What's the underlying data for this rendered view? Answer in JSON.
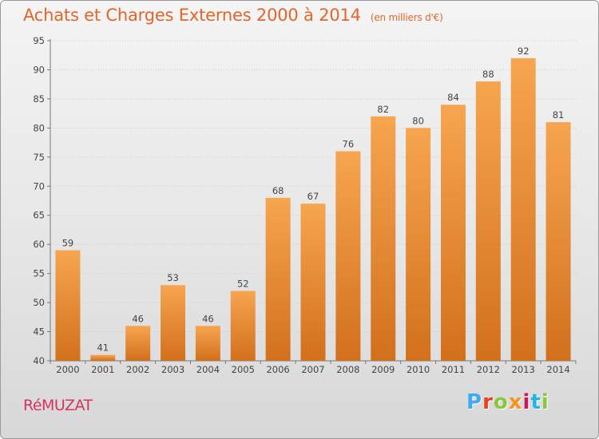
{
  "header": {
    "title": "Achats et Charges Externes 2000 à 2014",
    "unit": "(en milliers d'€)"
  },
  "footer": {
    "place": "RéMUZAT",
    "logo": "Proxiti"
  },
  "colors": {
    "bar_top": "#f7a550",
    "bar_bottom": "#d2701c",
    "title": "#e0662b",
    "place": "#d8355d",
    "logo_letters": [
      "#3fa9f5",
      "#e8411c",
      "#8cc63f",
      "#f7931e",
      "#d4145a",
      "#22b5e6",
      "#8cc63f"
    ]
  },
  "chart_data": {
    "type": "bar",
    "title": "Achats et Charges Externes 2000 à 2014",
    "subtitle": "(en milliers d'€)",
    "categories": [
      "2000",
      "2001",
      "2002",
      "2003",
      "2004",
      "2005",
      "2006",
      "2007",
      "2008",
      "2009",
      "2010",
      "2011",
      "2012",
      "2013",
      "2014"
    ],
    "values": [
      59,
      41,
      46,
      53,
      46,
      52,
      68,
      67,
      76,
      82,
      80,
      84,
      88,
      92,
      81
    ],
    "ylim": [
      40,
      95
    ],
    "yticks": [
      40,
      45,
      50,
      55,
      60,
      65,
      70,
      75,
      80,
      85,
      90,
      95
    ],
    "grid": true,
    "data_labels": true
  }
}
